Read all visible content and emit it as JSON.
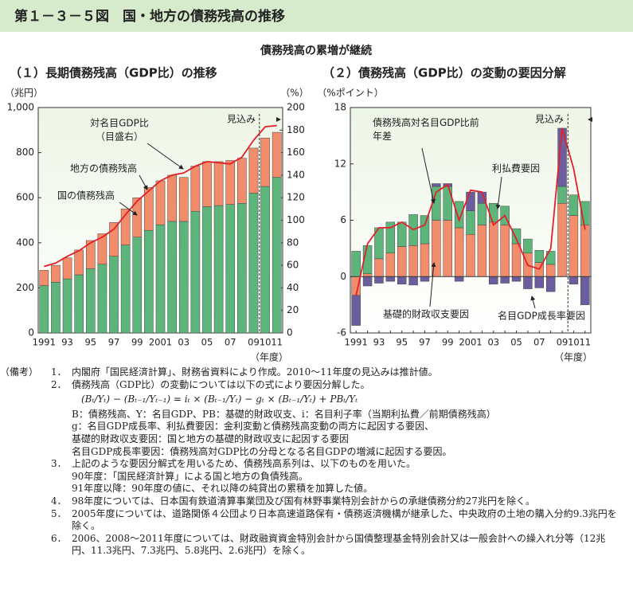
{
  "header": {
    "title": "第１－３－５図　国・地方の債務残高の推移",
    "subtitle": "債務残高の累増が継続"
  },
  "chart_data": [
    {
      "type": "bar",
      "stacked": true,
      "title": "（１）長期債務残高（GDP比）の推移",
      "categories": [
        "1991",
        null,
        "93",
        null,
        "95",
        null,
        "97",
        null,
        "99",
        null,
        "2001",
        null,
        "03",
        null,
        "05",
        null,
        "07",
        null,
        "09",
        "10",
        "11"
      ],
      "series": [
        {
          "name": "国の債務残高",
          "color": "#5db57c",
          "values": [
            210,
            225,
            240,
            258,
            285,
            305,
            340,
            390,
            425,
            455,
            480,
            495,
            495,
            540,
            560,
            565,
            570,
            575,
            620,
            650,
            690
          ]
        },
        {
          "name": "地方の債務残高",
          "color": "#f28d6c",
          "values": [
            68,
            75,
            93,
            110,
            125,
            135,
            150,
            160,
            175,
            190,
            195,
            205,
            195,
            200,
            200,
            195,
            195,
            200,
            200,
            215,
            200
          ]
        },
        {
          "name": "対名目GDP比",
          "type": "line",
          "axis": "y2",
          "color": "#e3202a",
          "values": [
            59,
            62,
            68,
            73,
            80,
            85,
            92,
            105,
            117,
            126,
            135,
            140,
            142,
            148,
            152,
            151,
            150,
            156,
            171,
            183,
            184
          ]
        }
      ],
      "ylim": [
        0,
        1000
      ],
      "yticks": [
        0,
        200,
        400,
        600,
        800,
        {
          "value": 1000,
          "label": "1,000"
        }
      ],
      "y2lim": [
        0,
        200
      ],
      "y2ticks": [
        0,
        20,
        40,
        60,
        80,
        100,
        120,
        140,
        160,
        180,
        200
      ],
      "annotations": [
        "（兆円）",
        "（%）",
        "（年度）",
        "（目盛右）",
        "見込み"
      ]
    },
    {
      "type": "bar",
      "stacked": true,
      "title": "（２）債務残高（GDP比）の変動の要因分解",
      "categories": [
        "1991",
        null,
        "93",
        null,
        "95",
        null,
        "97",
        null,
        "99",
        null,
        "2001",
        null,
        "03",
        null,
        "05",
        null,
        "07",
        null,
        "09",
        "10",
        "11"
      ],
      "series": [
        {
          "name": "基礎的財政収支要因",
          "color": "#f28d6c",
          "values": [
            -2,
            0.3,
            1.9,
            2.5,
            3.2,
            3.3,
            3.5,
            6,
            6,
            5.2,
            4.5,
            5.5,
            5.8,
            5.5,
            3.5,
            2.5,
            1.5,
            1.3,
            7.8,
            6.5,
            5.5
          ]
        },
        {
          "name": "利払費要因",
          "color": "#5db57c",
          "values": [
            2.7,
            3,
            3.3,
            3.3,
            2.6,
            3.3,
            3,
            3.6,
            3.6,
            2.8,
            2.5,
            2.3,
            2,
            2,
            1.6,
            1.5,
            1.3,
            1.4,
            1.8,
            2.2,
            2.5
          ]
        },
        {
          "name": "名目GDP成長率要因",
          "color": "#6b5d9e",
          "values": [
            -3.2,
            -1,
            -0.7,
            -0.5,
            -0.8,
            -0.9,
            -0.5,
            0.3,
            0.3,
            -0.5,
            2,
            1.2,
            -0.8,
            -0.7,
            -0.5,
            -1.3,
            -1.2,
            -1.6,
            6.2,
            -0.8,
            -3
          ]
        },
        {
          "name": "債務残高対名目GDP比前年差",
          "type": "line",
          "color": "#e3202a",
          "values": [
            -2,
            3.5,
            5.2,
            5.2,
            5.8,
            5,
            5.5,
            9,
            9.8,
            6,
            9.2,
            9,
            5.5,
            6.5,
            4,
            1.2,
            0.8,
            3,
            15.8,
            11.5,
            5
          ]
        }
      ],
      "ylim": [
        -6,
        18
      ],
      "yticks": [
        -6,
        0,
        6,
        12,
        18
      ],
      "annotations": [
        "（%ポイント）",
        "（年度）",
        "見込み"
      ]
    }
  ],
  "notes": {
    "label": "（備考）",
    "items": [
      {
        "num": "1．",
        "text": "内閣府「国民経済計算」、財務省資料により作成。2010～11年度の見込みは推計値。"
      },
      {
        "num": "2．",
        "text": "債務残高（GDP比）の変動については以下の式により要因分解した。",
        "formula": "(Bₜ/Yₜ) − (Bₜ₋₁/Yₜ₋₁) = iₜ × (Bₜ₋₁/Yₜ) − gₜ × (Bₜ₋₁/Yₜ) + PBₜ/Yₜ",
        "lines": [
          "B：債務残高、Y：名目GDP、PB：基礎的財政収支、i：名目利子率（当期利払費／前期債務残高）",
          "g：名目GDP成長率、利払費要因：金利変動と債務残高変動の両方に起因する要因、",
          "基礎的財政収支要因：国と地方の基礎的財政収支に起因する要因",
          "名目GDP成長率要因：債務残高対GDP比の分母となる名目GDPの増減に起因する要因。"
        ]
      },
      {
        "num": "3．",
        "text": "上記のような要因分解式を用いるため、債務残高系列は、以下のものを用いた。",
        "lines": [
          "90年度：「国民経済計算」による国と地方の負債残高。",
          "91年度以降：90年度の値に、それ以降の純貸出の累積を加算した値。"
        ]
      },
      {
        "num": "4．",
        "text": "98年度については、日本国有鉄道清算事業団及び国有林野事業特別会計からの承継債務分約27兆円を除く。"
      },
      {
        "num": "5．",
        "text": "2005年度については、道路関係４公団より日本高速道路保有・債務返済機構が継承した、中央政府の土地の購入分約9.3兆円を除く。"
      },
      {
        "num": "6．",
        "text": "2006、2008～2011年度については、財政融資資金特別会計から国債整理基金特別会計又は一般会計への繰入れ分等（12兆円、11.3兆円、7.3兆円、5.8兆円、2.6兆円）を除く。"
      }
    ]
  }
}
